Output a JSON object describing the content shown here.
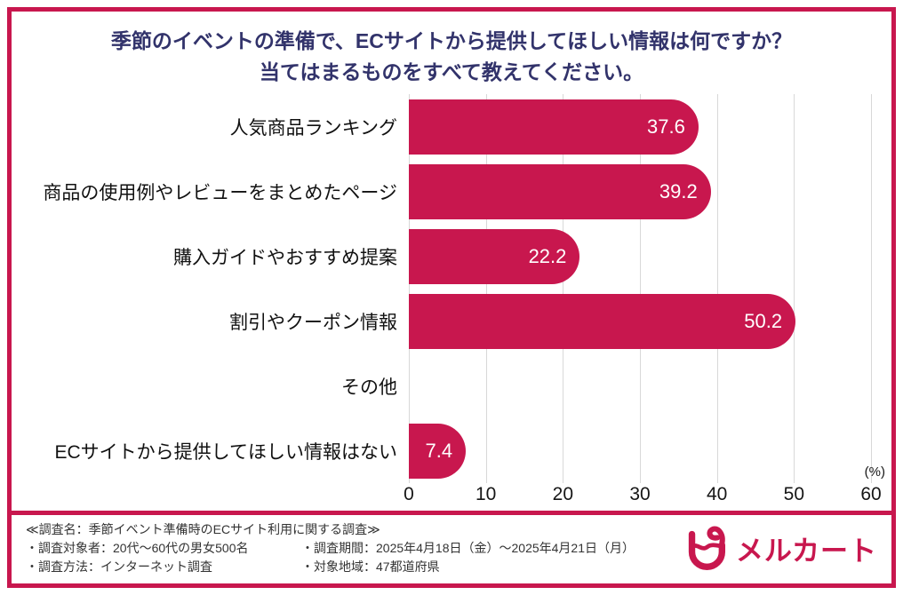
{
  "title": {
    "line1": "季節のイベントの準備で、ECサイトから提供してほしい情報は何ですか？",
    "line2": "当てはまるものをすべて教えてください。"
  },
  "chart_data": {
    "type": "bar",
    "orientation": "horizontal",
    "title": "季節のイベントの準備で、ECサイトから提供してほしい情報は何ですか？当てはまるものをすべて教えてください。",
    "categories": [
      "人気商品ランキング",
      "商品の使用例やレビューをまとめたページ",
      "購入ガイドやおすすめ提案",
      "割引やクーポン情報",
      "その他",
      "ECサイトから提供してほしい情報はない"
    ],
    "values": [
      37.6,
      39.2,
      22.2,
      50.2,
      0,
      7.4
    ],
    "value_labels": [
      "37.6",
      "39.2",
      "22.2",
      "50.2",
      "",
      "7.4"
    ],
    "xlim": [
      0,
      60
    ],
    "x_ticks": [
      0,
      10,
      20,
      30,
      40,
      50,
      60
    ],
    "unit_label": "(%)",
    "grid": true,
    "legend": "none",
    "bar_color": "#C8174E"
  },
  "footer": {
    "survey_name": "≪調査名：季節イベント準備時のECサイト利用に関する調査≫",
    "items": [
      "・調査対象者：20代～60代の男女500名",
      "・調査期間：2025年4月18日（金）～2025年4月21日（月）",
      "・調査方法：インターネット調査",
      "・対象地域：47都道府県"
    ],
    "logo_text": "メルカート"
  },
  "colors": {
    "accent": "#C8174E",
    "title": "#32336B",
    "gridline": "#D8D8D8"
  }
}
